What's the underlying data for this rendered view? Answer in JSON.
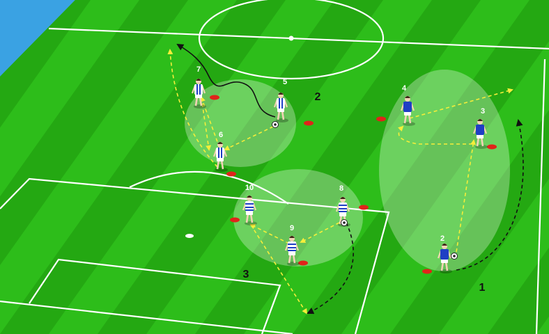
{
  "colors": {
    "grass_light": "#2dbd1a",
    "grass_dark": "#24a812",
    "surround": "#3aa2e3",
    "pass_line": "#f5ee3a",
    "run_line": "#111111",
    "cone": "#e0241a",
    "shirt_blue": "#1f3fc4",
    "shirt_stripe": "#ffffff"
  },
  "zones": [
    {
      "id": "zone-1",
      "label": "1"
    },
    {
      "id": "zone-2",
      "label": "2"
    },
    {
      "id": "zone-3",
      "label": "3"
    }
  ],
  "players": [
    {
      "id": "player-2",
      "number": "2",
      "kit": "blue",
      "ball": true
    },
    {
      "id": "player-3",
      "number": "3",
      "kit": "blue",
      "ball": false
    },
    {
      "id": "player-4",
      "number": "4",
      "kit": "blue",
      "ball": false
    },
    {
      "id": "player-5",
      "number": "5",
      "kit": "striped",
      "ball": true
    },
    {
      "id": "player-6",
      "number": "6",
      "kit": "striped",
      "ball": false
    },
    {
      "id": "player-7",
      "number": "7",
      "kit": "striped",
      "ball": false
    },
    {
      "id": "player-8",
      "number": "8",
      "kit": "hooped",
      "ball": true
    },
    {
      "id": "player-9",
      "number": "9",
      "kit": "hooped",
      "ball": false
    },
    {
      "id": "player-10",
      "number": "10",
      "kit": "hooped",
      "ball": false
    }
  ]
}
